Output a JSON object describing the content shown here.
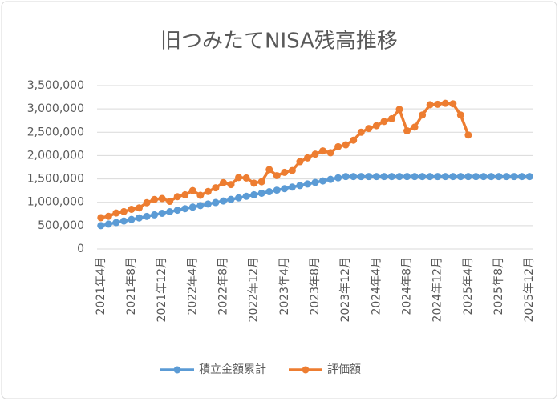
{
  "chart_data": {
    "type": "line",
    "title": "旧つみたてNISA残高推移",
    "categories": [
      "2021年4月",
      null,
      null,
      null,
      "2021年8月",
      null,
      null,
      null,
      "2021年12月",
      null,
      null,
      null,
      "2022年4月",
      null,
      null,
      null,
      "2022年8月",
      null,
      null,
      null,
      "2022年12月",
      null,
      null,
      null,
      "2023年4月",
      null,
      null,
      null,
      "2023年8月",
      null,
      null,
      null,
      "2023年12月",
      null,
      null,
      null,
      "2024年4月",
      null,
      null,
      null,
      "2024年8月",
      null,
      null,
      null,
      "2024年12月",
      null,
      null,
      null,
      "2025年4月",
      null,
      null,
      null,
      "2025年8月",
      null,
      null,
      null,
      "2025年12月"
    ],
    "series": [
      {
        "name": "積立金額累計",
        "color": "#5b9bd5",
        "values": [
          500000,
          533000,
          566000,
          599000,
          632000,
          665000,
          698000,
          731000,
          764000,
          797000,
          830000,
          863000,
          896000,
          929000,
          962000,
          995000,
          1028000,
          1061000,
          1094000,
          1127000,
          1160000,
          1193000,
          1226000,
          1259000,
          1292000,
          1325000,
          1358000,
          1391000,
          1424000,
          1457000,
          1490000,
          1523000,
          1550000,
          1550000,
          1550000,
          1550000,
          1550000,
          1550000,
          1550000,
          1550000,
          1550000,
          1550000,
          1550000,
          1550000,
          1550000,
          1550000,
          1550000,
          1550000,
          1550000,
          1550000,
          1550000,
          1550000,
          1550000,
          1550000,
          1550000,
          1550000,
          1550000
        ]
      },
      {
        "name": "評価額",
        "color": "#ed7d31",
        "values": [
          670000,
          700000,
          770000,
          800000,
          850000,
          880000,
          990000,
          1060000,
          1080000,
          1020000,
          1120000,
          1160000,
          1250000,
          1150000,
          1230000,
          1310000,
          1420000,
          1380000,
          1530000,
          1520000,
          1410000,
          1440000,
          1700000,
          1570000,
          1640000,
          1680000,
          1870000,
          1950000,
          2030000,
          2100000,
          2060000,
          2190000,
          2230000,
          2330000,
          2500000,
          2580000,
          2640000,
          2730000,
          2790000,
          2990000,
          2530000,
          2610000,
          2870000,
          3090000,
          3100000,
          3120000,
          3110000,
          2870000,
          2440000,
          null,
          null,
          null,
          null,
          null,
          null,
          null,
          null
        ]
      }
    ],
    "ylim": [
      0,
      3500000
    ],
    "yticks": [
      0,
      {
        "value": 500000,
        "label": "500,000"
      },
      {
        "value": 1000000,
        "label": "1,000,000"
      },
      {
        "value": 1500000,
        "label": "1,500,000"
      },
      {
        "value": 2000000,
        "label": "2,000,000"
      },
      {
        "value": 2500000,
        "label": "2,500,000"
      },
      {
        "value": 3000000,
        "label": "3,000,000"
      },
      {
        "value": 3500000,
        "label": "3,500,000"
      }
    ],
    "grid": true,
    "legend": "bottom"
  }
}
